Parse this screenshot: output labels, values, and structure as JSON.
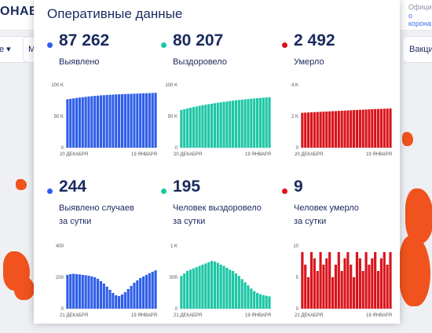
{
  "background": {
    "brand": "ОНАВИ",
    "official_note": [
      "Официа",
      "о корона"
    ],
    "nav_left_1": "е",
    "nav_left_2": "М",
    "nav_right": "Вакци"
  },
  "card": {
    "title": "Оперативные данные",
    "panels": [
      {
        "id": "detected",
        "color": "#2f5fe8",
        "value": "87 262",
        "label_lines": [
          "Выявлено"
        ],
        "chart": {
          "type": "bar",
          "ticks": [
            "0",
            "50 K",
            "100 K"
          ],
          "ymax": 100000,
          "x_start": "20 ДЕКАБРЯ",
          "x_end": "19 ЯНВАРЯ",
          "values": [
            77000,
            77700,
            78400,
            79100,
            79700,
            80300,
            80900,
            81400,
            81900,
            82400,
            82800,
            83200,
            83500,
            83800,
            84100,
            84400,
            84700,
            84900,
            85100,
            85300,
            85500,
            85700,
            85900,
            86100,
            86300,
            86500,
            86700,
            86900,
            87000,
            87262
          ]
        }
      },
      {
        "id": "recovered",
        "color": "#1dc6a6",
        "value": "80 207",
        "label_lines": [
          "Выздоровело"
        ],
        "chart": {
          "type": "bar",
          "ticks": [
            "0",
            "50 K",
            "100 K"
          ],
          "ymax": 100000,
          "x_start": "20 ДЕКАБРЯ",
          "x_end": "19 ЯНВАРЯ",
          "values": [
            60000,
            61200,
            62400,
            63500,
            64600,
            65600,
            66600,
            67500,
            68400,
            69200,
            70000,
            70800,
            71500,
            72200,
            72900,
            73600,
            74200,
            74800,
            75400,
            75900,
            76400,
            76900,
            77400,
            77900,
            78300,
            78700,
            79100,
            79500,
            79900,
            80207
          ]
        }
      },
      {
        "id": "died",
        "color": "#d9141b",
        "value": "2 492",
        "label_lines": [
          "Умерло"
        ],
        "chart": {
          "type": "bar",
          "ticks": [
            "0",
            "2 K",
            "4 K"
          ],
          "ymax": 4000,
          "x_start": "20 ДЕКАБРЯ",
          "x_end": "19 ЯНВАРЯ",
          "values": [
            2220,
            2230,
            2240,
            2250,
            2260,
            2270,
            2280,
            2290,
            2300,
            2310,
            2320,
            2330,
            2340,
            2350,
            2360,
            2370,
            2380,
            2390,
            2400,
            2410,
            2420,
            2430,
            2440,
            2450,
            2460,
            2465,
            2470,
            2478,
            2485,
            2492
          ]
        }
      },
      {
        "id": "detected_day",
        "color": "#2f5fe8",
        "value": "244",
        "label_lines": [
          "Выявлено случаев",
          "за сутки"
        ],
        "chart": {
          "type": "bar",
          "ticks": [
            "0",
            "200",
            "400"
          ],
          "ymax": 400,
          "x_start": "21 ДЕКАБРЯ",
          "x_end": "19 ЯНВАРЯ",
          "values": [
            215,
            220,
            222,
            220,
            218,
            215,
            213,
            210,
            205,
            200,
            190,
            175,
            160,
            140,
            120,
            100,
            85,
            80,
            90,
            105,
            125,
            145,
            165,
            180,
            195,
            205,
            215,
            225,
            235,
            244
          ]
        }
      },
      {
        "id": "recovered_day",
        "color": "#1dc6a6",
        "value": "195",
        "label_lines": [
          "Человек выздоровело",
          "за сутки"
        ],
        "chart": {
          "type": "bar",
          "ticks": [
            "0",
            "500",
            "1 K"
          ],
          "ymax": 1000,
          "x_start": "21 ДЕКАБРЯ",
          "x_end": "19 ЯНВАРЯ",
          "values": [
            520,
            560,
            600,
            620,
            640,
            660,
            680,
            700,
            720,
            740,
            760,
            750,
            730,
            700,
            680,
            650,
            620,
            600,
            560,
            520,
            470,
            420,
            370,
            320,
            280,
            250,
            230,
            215,
            205,
            195
          ]
        }
      },
      {
        "id": "died_day",
        "color": "#d9141b",
        "value": "9",
        "label_lines": [
          "Человек умерло",
          "за сутки"
        ],
        "chart": {
          "type": "bar",
          "ticks": [
            "0",
            "5",
            "10"
          ],
          "ymax": 10,
          "x_start": "21 ДЕКАБРЯ",
          "x_end": "19 ЯНВАРЯ",
          "values": [
            9,
            7,
            5,
            9,
            8,
            6,
            9,
            7,
            8,
            9,
            5,
            7,
            9,
            6,
            8,
            9,
            7,
            5,
            9,
            8,
            6,
            9,
            7,
            8,
            9,
            6,
            8,
            9,
            7,
            9
          ]
        }
      }
    ]
  }
}
